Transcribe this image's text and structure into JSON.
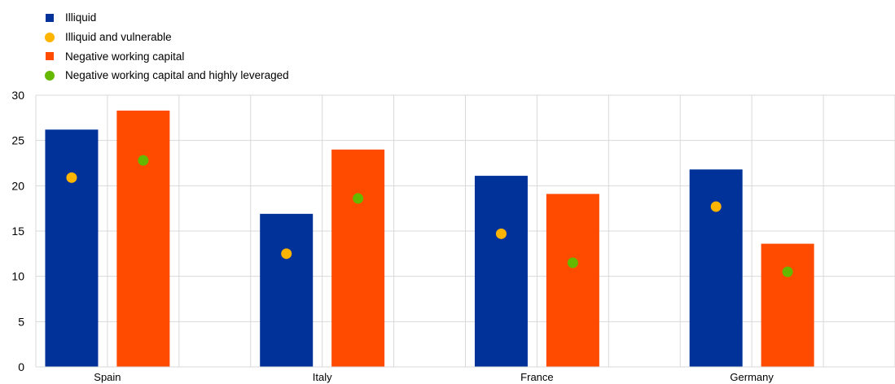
{
  "chart_data": {
    "type": "bar",
    "title": "",
    "xlabel": "",
    "ylabel": "",
    "categories": [
      "Spain",
      "Italy",
      "France",
      "Germany"
    ],
    "ylim": [
      0,
      30
    ],
    "yticks": [
      0,
      5,
      10,
      15,
      20,
      25,
      30
    ],
    "grid": true,
    "legend_position": "top-left",
    "bar_series": [
      {
        "name": "Illiquid",
        "color": "#003299",
        "values": [
          26.2,
          16.9,
          21.1,
          21.8
        ]
      },
      {
        "name": "Negative working capital",
        "color": "#FF4B00",
        "values": [
          28.3,
          24.0,
          19.1,
          13.6
        ]
      }
    ],
    "dot_series": [
      {
        "name": "Illiquid and vulnerable",
        "color": "#FFB400",
        "on_bar_series": 0,
        "values": [
          20.9,
          12.5,
          14.7,
          17.7
        ]
      },
      {
        "name": "Negative working capital and highly leveraged",
        "color": "#65B800",
        "on_bar_series": 1,
        "values": [
          22.8,
          18.6,
          11.5,
          10.5
        ]
      }
    ]
  },
  "legend": [
    {
      "label": "Illiquid",
      "color": "#003299",
      "shape": "square"
    },
    {
      "label": "Illiquid and vulnerable",
      "color": "#FFB400",
      "shape": "circle"
    },
    {
      "label": "Negative working capital",
      "color": "#FF4B00",
      "shape": "square"
    },
    {
      "label": "Negative working capital and highly leveraged",
      "color": "#65B800",
      "shape": "circle"
    }
  ]
}
